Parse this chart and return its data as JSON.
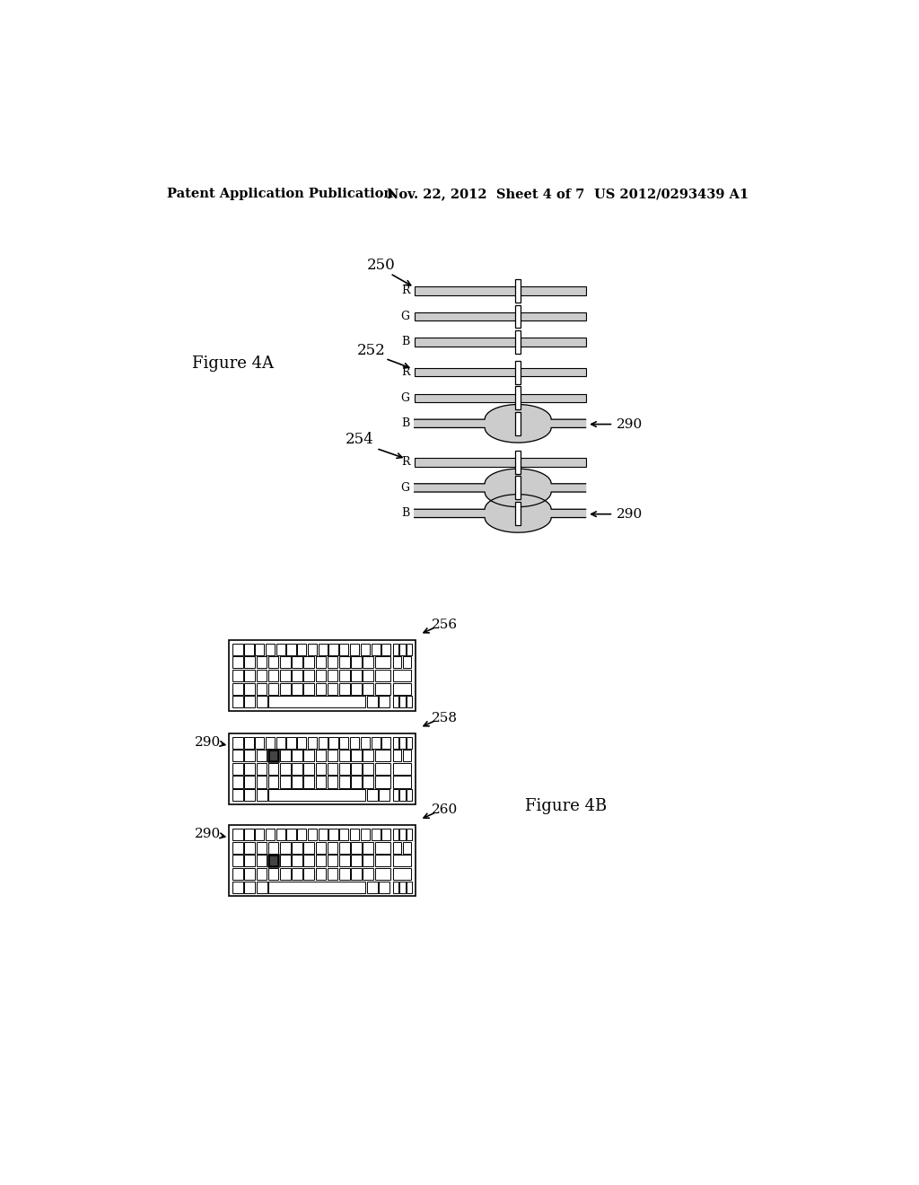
{
  "header_left": "Patent Application Publication",
  "header_mid": "Nov. 22, 2012  Sheet 4 of 7",
  "header_right": "US 2012/0293439 A1",
  "fig4a_label": "Figure 4A",
  "fig4b_label": "Figure 4B",
  "bg_color": "#ffffff",
  "line_color": "#000000",
  "gray_fill": "#cccccc",
  "highlight_color": "#888888",
  "highlight_dark": "#444444"
}
